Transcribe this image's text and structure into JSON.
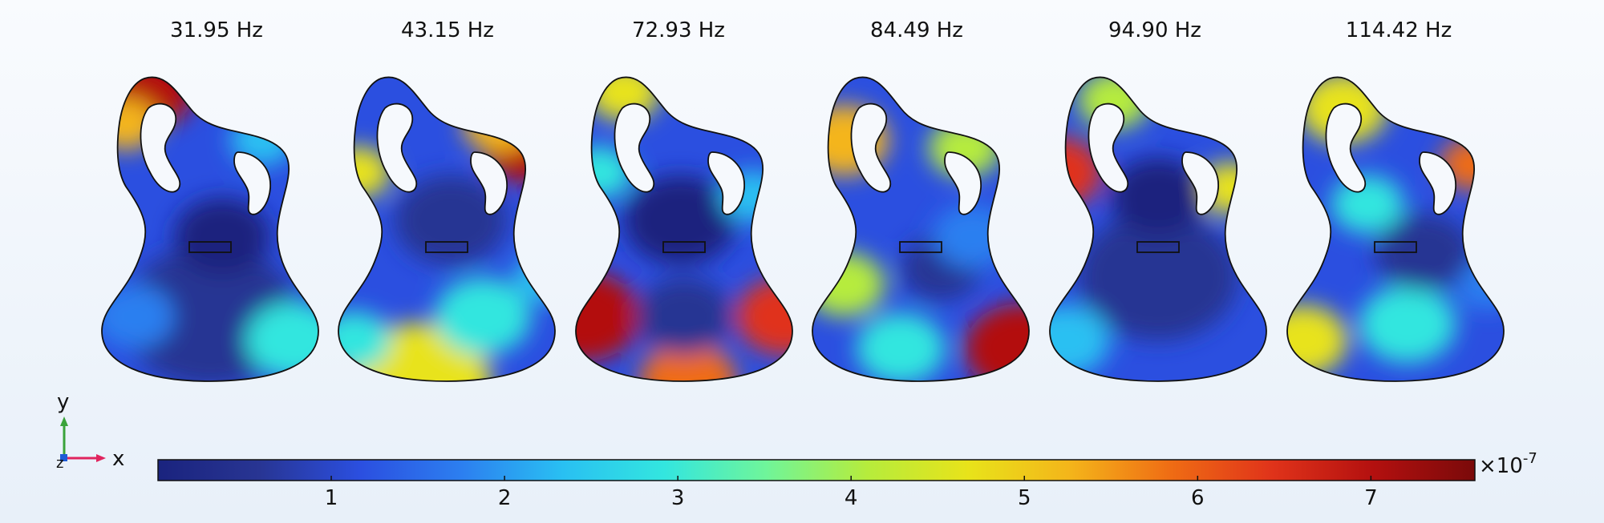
{
  "modes": [
    {
      "frequency_label": "31.95 Hz"
    },
    {
      "frequency_label": "43.15 Hz"
    },
    {
      "frequency_label": "72.93 Hz"
    },
    {
      "frequency_label": "84.49 Hz"
    },
    {
      "frequency_label": "94.90 Hz"
    },
    {
      "frequency_label": "114.42 Hz"
    }
  ],
  "colorbar": {
    "tick_labels": [
      "1",
      "2",
      "3",
      "4",
      "5",
      "6",
      "7"
    ],
    "scale_prefix": "×10",
    "scale_exponent": "-7",
    "range": [
      0,
      7.6
    ],
    "colors": [
      "#1a237e",
      "#283593",
      "#2b4fe0",
      "#2c7ff0",
      "#29c0f2",
      "#33e6df",
      "#6ff59a",
      "#b6ec3c",
      "#e8e31a",
      "#f4b51a",
      "#ef6c14",
      "#e0331a",
      "#b3100f",
      "#7a0a0a"
    ]
  },
  "axes": {
    "y_label": "y",
    "x_label": "x",
    "z_label": "z",
    "colors": {
      "x": "#e0245e",
      "y": "#3aa33a",
      "z": "#1e5bd6"
    }
  },
  "outline_color": "#111111"
}
